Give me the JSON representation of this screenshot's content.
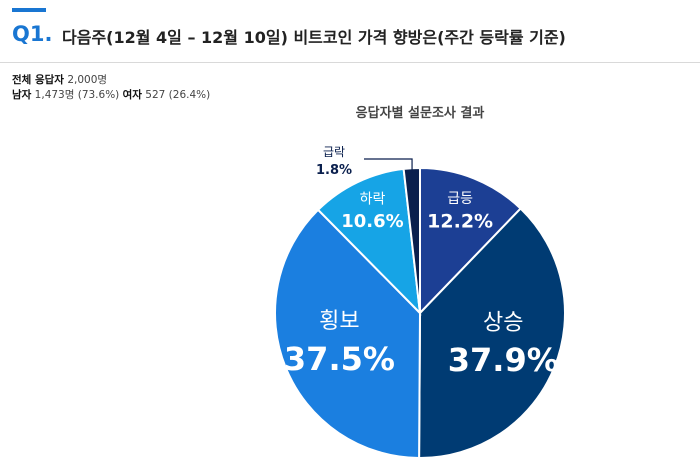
{
  "header": {
    "question_number": "Q1.",
    "title": "다음주(12월 4일 – 12월 10일)  비트코인 가격 향방은(주간 등락률 기준)"
  },
  "respondents": {
    "total_label": "전체 응답자",
    "total_value": "2,000명",
    "male_label": "남자",
    "male_value": "1,473명 (73.6%)",
    "female_label": "여자",
    "female_value": "527 (26.4%)"
  },
  "chart_data": {
    "type": "pie",
    "title": "응답자별 설문조사 결과",
    "start": "12 o'clock, clockwise",
    "slices": [
      {
        "label": "급등",
        "value": 12.2,
        "value_label": "12.2%",
        "color": "#1c3f94"
      },
      {
        "label": "상승",
        "value": 37.9,
        "value_label": "37.9%",
        "color": "#003b73"
      },
      {
        "label": "횡보",
        "value": 37.5,
        "value_label": "37.5%",
        "color": "#1b7fe0"
      },
      {
        "label": "하락",
        "value": 10.6,
        "value_label": "10.6%",
        "color": "#16a4e6"
      },
      {
        "label": "급락",
        "value": 1.8,
        "value_label": "1.8%",
        "color": "#0a1f4d",
        "callout": true
      }
    ]
  }
}
